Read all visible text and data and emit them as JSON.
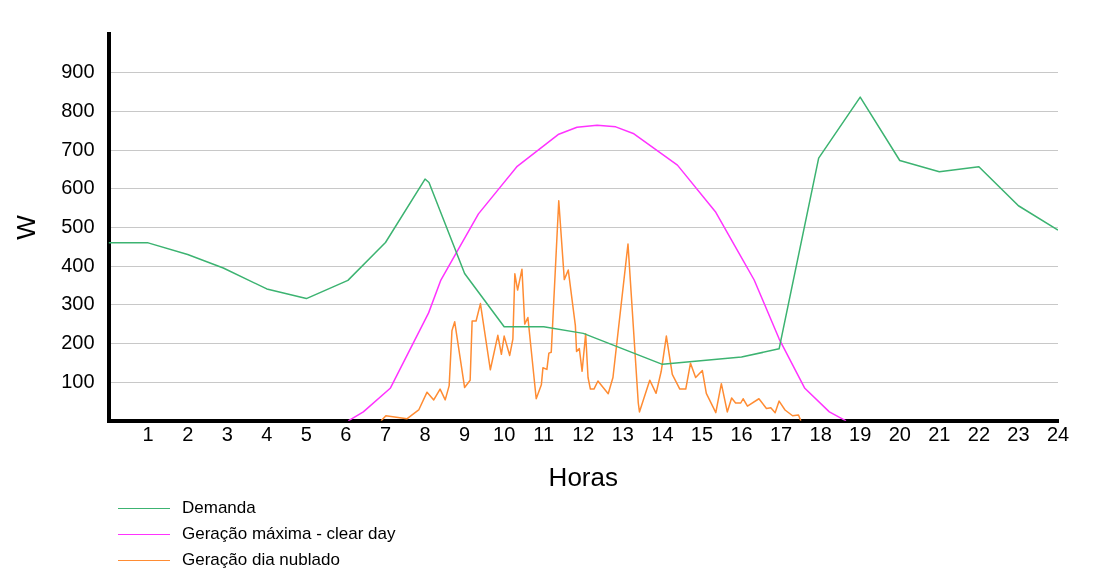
{
  "chart_data": {
    "type": "line",
    "xlabel": "Horas",
    "ylabel": "W",
    "xlim": [
      0,
      24
    ],
    "xticks": [
      1,
      2,
      3,
      4,
      5,
      6,
      7,
      8,
      9,
      10,
      11,
      12,
      13,
      14,
      15,
      16,
      17,
      18,
      19,
      20,
      21,
      22,
      23,
      24
    ],
    "ylim": [
      0,
      1000
    ],
    "yticks": [
      100,
      200,
      300,
      400,
      500,
      600,
      700,
      800,
      900
    ],
    "grid": "y",
    "legend": "bottom left",
    "marker": "none",
    "line_style": "solid",
    "series": [
      {
        "name": "Demanda",
        "color": "#3cb371",
        "x": [
          0,
          1,
          2,
          2.9,
          4,
          5,
          6.05,
          7,
          8,
          8.1,
          9,
          10,
          11,
          12,
          14,
          16,
          16.95,
          17.95,
          19,
          20,
          21,
          22,
          23,
          24
        ],
        "values": [
          460,
          460,
          430,
          395,
          341,
          316,
          363,
          461,
          625,
          616,
          381,
          243,
          243,
          226,
          146,
          165,
          186,
          679,
          837,
          673,
          644,
          657,
          556,
          493
        ]
      },
      {
        "name": "Geração máxima - clear day",
        "color": "#ff33ff",
        "x": [
          6.06,
          6.44,
          7.12,
          8.09,
          8.4,
          9.35,
          10.33,
          11.38,
          11.84,
          12.35,
          12.82,
          13.28,
          14.38,
          15.35,
          16.32,
          16.95,
          17.6,
          18.22,
          18.64
        ],
        "values": [
          0,
          23,
          84,
          279,
          364,
          535,
          658,
          741,
          759,
          764,
          760,
          742,
          661,
          539,
          364,
          212,
          84,
          23,
          0
        ]
      },
      {
        "name": "Geração dia nublado",
        "color": "#ff8c33",
        "x": [
          6.89,
          7.01,
          7.54,
          7.84,
          8.05,
          8.22,
          8.38,
          8.51,
          8.61,
          8.68,
          8.75,
          9.0,
          9.14,
          9.19,
          9.29,
          9.4,
          9.65,
          9.84,
          9.93,
          10.0,
          10.14,
          10.22,
          10.27,
          10.34,
          10.45,
          10.52,
          10.6,
          10.81,
          10.94,
          10.98,
          11.08,
          11.13,
          11.19,
          11.38,
          11.52,
          11.62,
          11.8,
          11.83,
          11.9,
          11.97,
          12.06,
          12.12,
          12.18,
          12.27,
          12.37,
          12.63,
          12.75,
          13.13,
          13.39,
          13.42,
          13.68,
          13.84,
          13.97,
          14.1,
          14.25,
          14.44,
          14.59,
          14.71,
          14.84,
          15.01,
          15.11,
          15.35,
          15.49,
          15.64,
          15.75,
          15.85,
          15.98,
          16.04,
          16.15,
          16.44,
          16.63,
          16.74,
          16.85,
          16.95,
          17.1,
          17.29,
          17.44,
          17.5
        ],
        "values": [
          0,
          13,
          5,
          28,
          74,
          54,
          82,
          54,
          91,
          233,
          256,
          86,
          105,
          258,
          258,
          303,
          132,
          221,
          172,
          219,
          169,
          211,
          380,
          338,
          392,
          250,
          267,
          57,
          93,
          137,
          133,
          175,
          177,
          569,
          365,
          390,
          246,
          179,
          187,
          128,
          225,
          112,
          82,
          82,
          103,
          70,
          112,
          457,
          46,
          23,
          105,
          71,
          128,
          219,
          120,
          82,
          82,
          149,
          112,
          130,
          71,
          21,
          96,
          23,
          59,
          46,
          46,
          57,
          38,
          57,
          32,
          34,
          21,
          51,
          28,
          13,
          15,
          0
        ]
      }
    ]
  }
}
